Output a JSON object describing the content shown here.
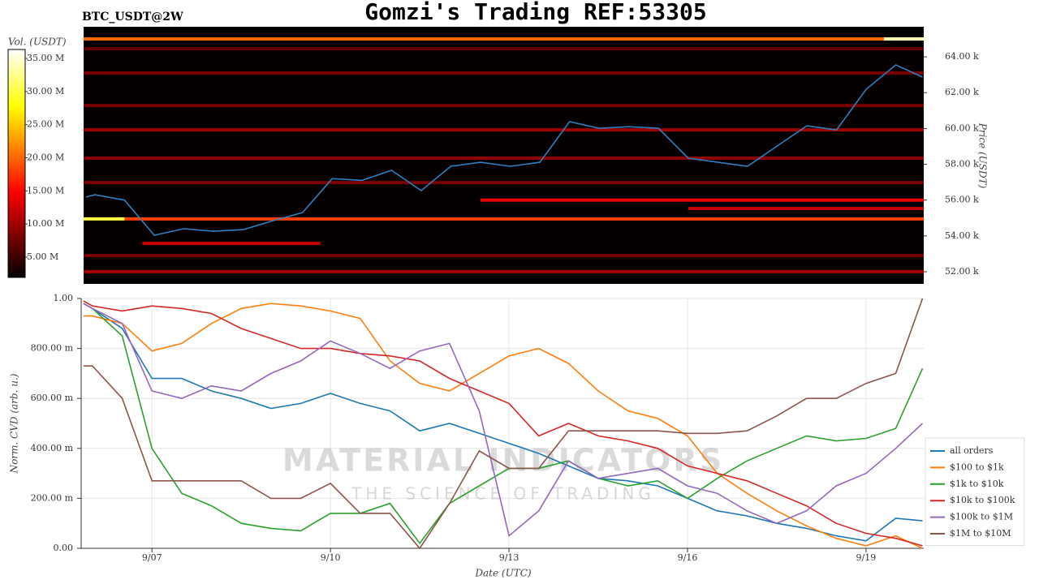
{
  "title": "Gomzi's Trading REF:53305",
  "watermark": {
    "title": "MATERIAL INDICATORS",
    "subtitle": "THE SCIENCE OF TRADING"
  },
  "chart_data": [
    {
      "type": "heatmap",
      "title": "BTC_USDT@2W",
      "ylabel": "Price (USDT)",
      "xlim": [
        5.81,
        19.97
      ],
      "ylim": [
        51320,
        65680
      ],
      "yticks": [
        {
          "value": 52000,
          "label": "52.00 k"
        },
        {
          "value": 54000,
          "label": "54.00 k"
        },
        {
          "value": 56000,
          "label": "56.00 k"
        },
        {
          "value": 58000,
          "label": "58.00 k"
        },
        {
          "value": 60000,
          "label": "60.00 k"
        },
        {
          "value": 62000,
          "label": "62.00 k"
        },
        {
          "value": 64000,
          "label": "64.00 k"
        }
      ],
      "colorbar": {
        "label": "Vol. (USDT)",
        "lim": [
          1940000,
          36350000
        ],
        "ticks": [
          {
            "value": 5000000,
            "label": "5.00 M"
          },
          {
            "value": 10000000,
            "label": "10.00 M"
          },
          {
            "value": 15000000,
            "label": "15.00 M"
          },
          {
            "value": 20000000,
            "label": "20.00 M"
          },
          {
            "value": 25000000,
            "label": "25.00 M"
          },
          {
            "value": 30000000,
            "label": "30.00 M"
          },
          {
            "value": 35000000,
            "label": "35.00 M"
          }
        ]
      },
      "bands": [
        {
          "price": 65000,
          "volume": 20000000,
          "x": [
            5.81,
            19.3
          ]
        },
        {
          "price": 65000,
          "volume": 34000000,
          "x": [
            19.3,
            19.97
          ]
        },
        {
          "price": 64450,
          "volume": 7000000,
          "x": [
            5.81,
            19.97
          ]
        },
        {
          "price": 63100,
          "volume": 8000000,
          "x": [
            5.81,
            19.97
          ]
        },
        {
          "price": 61280,
          "volume": 8000000,
          "x": [
            5.81,
            19.97
          ]
        },
        {
          "price": 59920,
          "volume": 10000000,
          "x": [
            5.81,
            19.97
          ]
        },
        {
          "price": 58340,
          "volume": 9000000,
          "x": [
            5.81,
            19.97
          ]
        },
        {
          "price": 56980,
          "volume": 8000000,
          "x": [
            5.81,
            19.97
          ]
        },
        {
          "price": 56000,
          "volume": 14000000,
          "x": [
            12.5,
            19.97
          ]
        },
        {
          "price": 55530,
          "volume": 12000000,
          "x": [
            16,
            19.97
          ]
        },
        {
          "price": 54950,
          "volume": 30000000,
          "x": [
            5.81,
            6.5
          ]
        },
        {
          "price": 54950,
          "volume": 18000000,
          "x": [
            6.5,
            19.97
          ]
        },
        {
          "price": 53580,
          "volume": 12000000,
          "x": [
            6.8,
            9.8
          ]
        },
        {
          "price": 52900,
          "volume": 8000000,
          "x": [
            5.81,
            19.97
          ]
        },
        {
          "price": 52000,
          "volume": 10000000,
          "x": [
            5.81,
            19.97
          ]
        }
      ],
      "price_series": {
        "color": "#2f7fc1",
        "x": [
          5.85,
          6.0,
          6.5,
          7.0,
          7.5,
          8.0,
          8.5,
          9.0,
          9.5,
          10.0,
          10.5,
          11.0,
          11.5,
          12.0,
          12.5,
          13.0,
          13.5,
          14.0,
          14.5,
          15.0,
          15.5,
          16.0,
          16.5,
          17.0,
          17.5,
          18.0,
          18.5,
          19.0,
          19.5,
          19.95
        ],
        "values": [
          56170,
          56300,
          56000,
          54040,
          54400,
          54260,
          54350,
          54850,
          55300,
          57200,
          57100,
          57660,
          56530,
          57890,
          58110,
          57890,
          58110,
          60380,
          60010,
          60100,
          60010,
          58340,
          58110,
          57890,
          59020,
          60150,
          59920,
          62190,
          63550,
          62870
        ]
      }
    },
    {
      "type": "line",
      "xlabel": "Date (UTC)",
      "ylabel": "Norm. CVD (arb. u.)",
      "xlim": [
        5.81,
        19.97
      ],
      "ylim": [
        0,
        1
      ],
      "grid": true,
      "legend": "lower right",
      "xticks": [
        {
          "value": 7,
          "label": "9/07"
        },
        {
          "value": 10,
          "label": "9/10"
        },
        {
          "value": 13,
          "label": "9/13"
        },
        {
          "value": 16,
          "label": "9/16"
        },
        {
          "value": 19,
          "label": "9/19"
        }
      ],
      "yticks": [
        {
          "value": 0,
          "label": "0.00"
        },
        {
          "value": 0.2,
          "label": "200.00 m"
        },
        {
          "value": 0.4,
          "label": "400.00 m"
        },
        {
          "value": 0.6,
          "label": "600.00 m"
        },
        {
          "value": 0.8,
          "label": "800.00 m"
        },
        {
          "value": 1,
          "label": "1.00"
        }
      ],
      "x": [
        5.85,
        6.0,
        6.5,
        7.0,
        7.5,
        8.0,
        8.5,
        9.0,
        9.5,
        10.0,
        10.5,
        11.0,
        11.5,
        12.0,
        12.5,
        13.0,
        13.5,
        14.0,
        14.5,
        15.0,
        15.5,
        16.0,
        16.5,
        17.0,
        17.5,
        18.0,
        18.5,
        19.0,
        19.5,
        19.95
      ],
      "series": [
        {
          "name": "all orders",
          "color": "#1f77b4",
          "values": [
            0.98,
            0.96,
            0.88,
            0.68,
            0.68,
            0.63,
            0.6,
            0.56,
            0.58,
            0.62,
            0.58,
            0.55,
            0.47,
            0.5,
            0.46,
            0.42,
            0.38,
            0.33,
            0.28,
            0.27,
            0.25,
            0.2,
            0.15,
            0.13,
            0.1,
            0.08,
            0.05,
            0.03,
            0.12,
            0.11
          ]
        },
        {
          "name": "$100 to $1k",
          "color": "#ff7f0e",
          "values": [
            0.93,
            0.93,
            0.9,
            0.79,
            0.82,
            0.9,
            0.96,
            0.98,
            0.97,
            0.95,
            0.92,
            0.75,
            0.66,
            0.63,
            0.7,
            0.77,
            0.8,
            0.74,
            0.63,
            0.55,
            0.52,
            0.45,
            0.3,
            0.22,
            0.15,
            0.09,
            0.04,
            0.01,
            0.05,
            0.0
          ]
        },
        {
          "name": "$1k to $10k",
          "color": "#2ca02c",
          "values": [
            0.98,
            0.96,
            0.85,
            0.4,
            0.22,
            0.17,
            0.1,
            0.08,
            0.07,
            0.14,
            0.14,
            0.18,
            0.02,
            0.18,
            0.25,
            0.32,
            0.32,
            0.35,
            0.28,
            0.25,
            0.27,
            0.2,
            0.28,
            0.35,
            0.4,
            0.45,
            0.43,
            0.44,
            0.48,
            0.72
          ]
        },
        {
          "name": "$10k to $100k",
          "color": "#d62728",
          "values": [
            0.99,
            0.97,
            0.95,
            0.97,
            0.96,
            0.94,
            0.88,
            0.84,
            0.8,
            0.8,
            0.78,
            0.77,
            0.75,
            0.68,
            0.63,
            0.58,
            0.45,
            0.5,
            0.45,
            0.43,
            0.4,
            0.33,
            0.3,
            0.27,
            0.22,
            0.17,
            0.1,
            0.06,
            0.04,
            0.01
          ]
        },
        {
          "name": "$100k to $1M",
          "color": "#9467bd",
          "values": [
            0.98,
            0.96,
            0.9,
            0.63,
            0.6,
            0.65,
            0.63,
            0.7,
            0.75,
            0.83,
            0.78,
            0.72,
            0.79,
            0.82,
            0.55,
            0.05,
            0.15,
            0.35,
            0.28,
            0.3,
            0.32,
            0.25,
            0.22,
            0.15,
            0.1,
            0.15,
            0.25,
            0.3,
            0.4,
            0.5
          ]
        },
        {
          "name": "$1M to $10M",
          "color": "#8c564b",
          "values": [
            0.73,
            0.73,
            0.6,
            0.27,
            0.27,
            0.27,
            0.27,
            0.2,
            0.2,
            0.26,
            0.14,
            0.14,
            0.0,
            0.18,
            0.39,
            0.32,
            0.32,
            0.47,
            0.47,
            0.47,
            0.47,
            0.46,
            0.46,
            0.47,
            0.53,
            0.6,
            0.6,
            0.66,
            0.7,
            1.0
          ]
        }
      ]
    }
  ]
}
